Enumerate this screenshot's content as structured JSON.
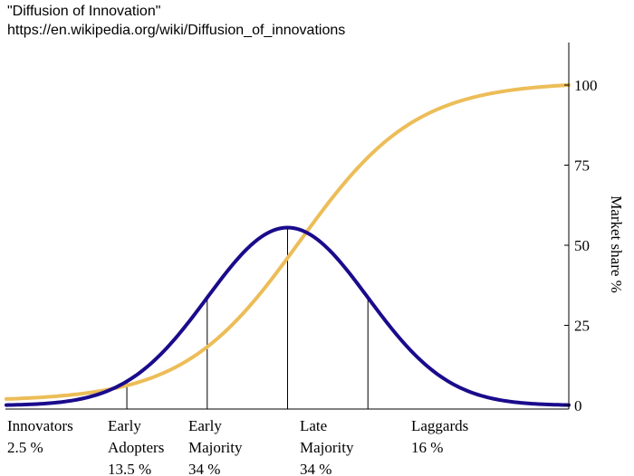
{
  "header": {
    "title": "\"Diffusion of Innovation\"",
    "url": "https://en.wikipedia.org/wiki/Diffusion_of_innovations"
  },
  "chart_data": {
    "type": "line",
    "ylabel": "Market share %",
    "yticks": [
      0,
      25,
      50,
      75,
      100
    ],
    "ylim": [
      0,
      110
    ],
    "xlim": [
      -3.5,
      3.5
    ],
    "colors": {
      "bell": "#1a0b8c",
      "cumulative": "#ecbd58",
      "axis": "#000000"
    },
    "series": [
      {
        "kind": "adoption-bell-curve",
        "peak": 55.5,
        "x": [
          -3.5,
          -2.5,
          -2,
          -1.5,
          -1,
          -0.5,
          0,
          0.5,
          1,
          1.5,
          2,
          2.5,
          3.5
        ],
        "y": [
          2.3,
          5.6,
          10.5,
          18.9,
          32.2,
          46,
          55.5,
          46,
          32.2,
          18.9,
          10.5,
          5.6,
          2.3
        ]
      },
      {
        "kind": "cumulative-s-curve",
        "x": [
          -3.5,
          -2,
          -1,
          0,
          1,
          2,
          3.5
        ],
        "y": [
          2.0,
          5.9,
          17.5,
          55,
          85,
          97,
          100
        ]
      }
    ],
    "segments": [
      {
        "name": "Innovators",
        "share": "2.5 %",
        "boundary": -2
      },
      {
        "name": "Early Adopters",
        "share": "13.5 %",
        "boundary": -1
      },
      {
        "name": "Early Majority",
        "share": "34 %",
        "boundary": 0
      },
      {
        "name": "Late Majority",
        "share": "34 %",
        "boundary": 1
      },
      {
        "name": "Laggards",
        "share": "16 %",
        "boundary": null
      }
    ],
    "category_labels": [
      {
        "lines": [
          "Innovators",
          "2.5 %"
        ]
      },
      {
        "lines": [
          "Early",
          "Adopters",
          "13.5 %"
        ]
      },
      {
        "lines": [
          "Early",
          "Majority",
          "34 %"
        ]
      },
      {
        "lines": [
          "Late",
          "Majority",
          "34 %"
        ]
      },
      {
        "lines": [
          "Laggards",
          "16 %"
        ]
      }
    ]
  }
}
